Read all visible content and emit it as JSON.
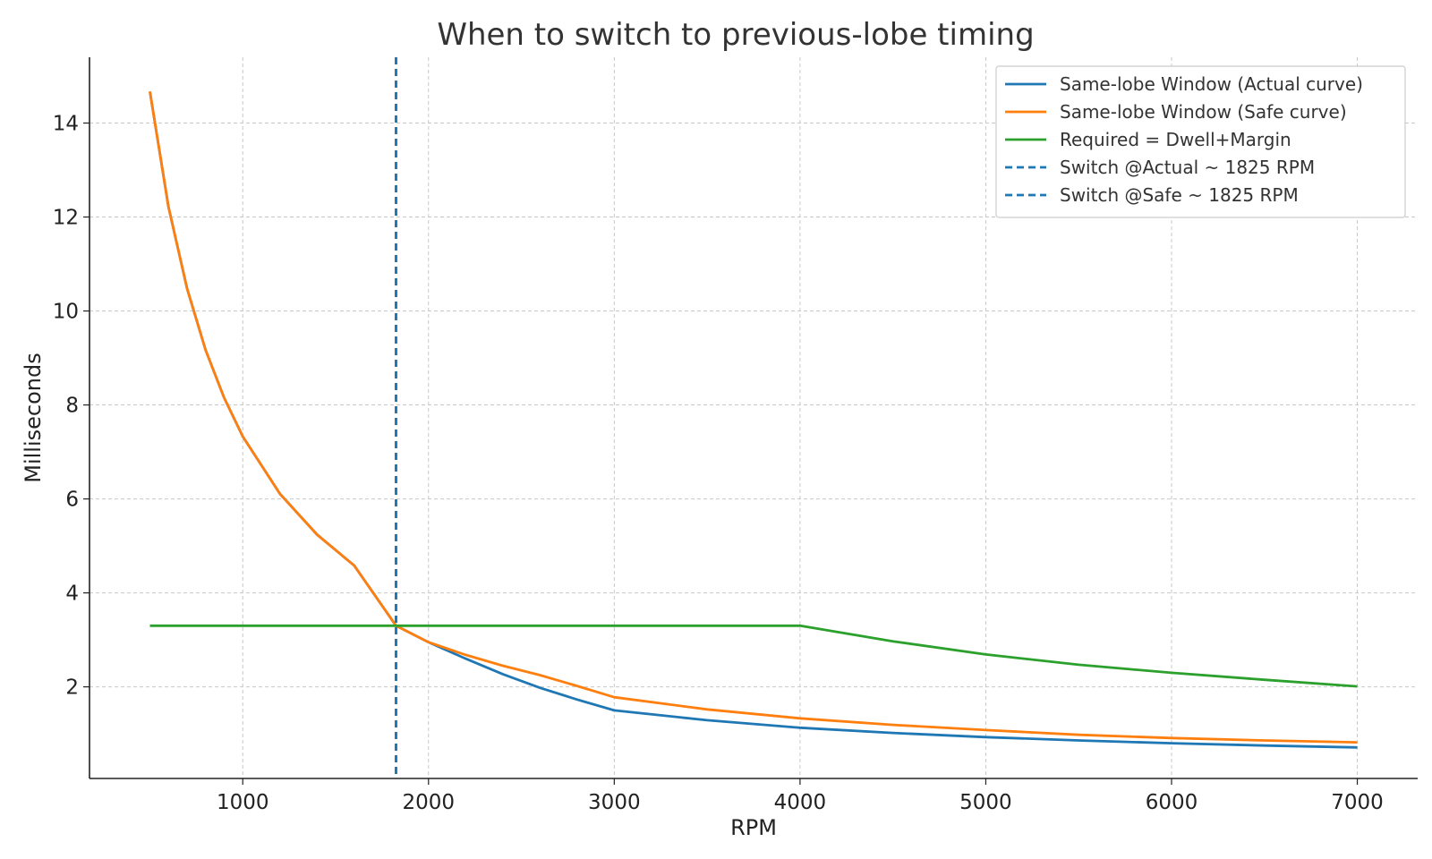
{
  "chart_data": {
    "type": "line",
    "title": "When to switch to previous-lobe timing",
    "xlabel": "RPM",
    "ylabel": "Milliseconds",
    "xlim": [
      175,
      7325
    ],
    "ylim": [
      0.05,
      15.4
    ],
    "xticks": [
      1000,
      2000,
      3000,
      4000,
      5000,
      6000,
      7000
    ],
    "yticks": [
      2,
      4,
      6,
      8,
      10,
      12,
      14
    ],
    "grid": true,
    "legend_position": "top-right",
    "series": [
      {
        "name": "Same-lobe Window (Actual curve)",
        "color": "#1f77b4",
        "dash": "solid",
        "points": [
          [
            500,
            14.67
          ],
          [
            600,
            12.22
          ],
          [
            700,
            10.48
          ],
          [
            800,
            9.17
          ],
          [
            900,
            8.15
          ],
          [
            1000,
            7.33
          ],
          [
            1200,
            6.11
          ],
          [
            1400,
            5.24
          ],
          [
            1600,
            4.58
          ],
          [
            1825,
            3.3
          ],
          [
            2000,
            2.95
          ],
          [
            2200,
            2.6
          ],
          [
            2400,
            2.27
          ],
          [
            2600,
            1.98
          ],
          [
            2800,
            1.73
          ],
          [
            3000,
            1.5
          ],
          [
            3500,
            1.29
          ],
          [
            4000,
            1.13
          ],
          [
            4500,
            1.02
          ],
          [
            5000,
            0.93
          ],
          [
            5500,
            0.86
          ],
          [
            6000,
            0.8
          ],
          [
            6500,
            0.75
          ],
          [
            7000,
            0.71
          ]
        ]
      },
      {
        "name": "Same-lobe Window (Safe curve)",
        "color": "#ff7f0e",
        "dash": "solid",
        "points": [
          [
            500,
            14.67
          ],
          [
            600,
            12.22
          ],
          [
            700,
            10.48
          ],
          [
            800,
            9.17
          ],
          [
            900,
            8.15
          ],
          [
            1000,
            7.33
          ],
          [
            1200,
            6.11
          ],
          [
            1400,
            5.24
          ],
          [
            1600,
            4.58
          ],
          [
            1825,
            3.3
          ],
          [
            2000,
            2.95
          ],
          [
            2200,
            2.68
          ],
          [
            2400,
            2.45
          ],
          [
            2600,
            2.25
          ],
          [
            2800,
            2.02
          ],
          [
            3000,
            1.78
          ],
          [
            3500,
            1.52
          ],
          [
            4000,
            1.33
          ],
          [
            4500,
            1.19
          ],
          [
            5000,
            1.08
          ],
          [
            5500,
            0.98
          ],
          [
            6000,
            0.91
          ],
          [
            6500,
            0.86
          ],
          [
            7000,
            0.82
          ]
        ]
      },
      {
        "name": "Required = Dwell+Margin",
        "color": "#2ca02c",
        "dash": "solid",
        "points": [
          [
            500,
            3.3
          ],
          [
            4000,
            3.3
          ],
          [
            4500,
            2.97
          ],
          [
            5000,
            2.69
          ],
          [
            5500,
            2.47
          ],
          [
            6000,
            2.3
          ],
          [
            6500,
            2.15
          ],
          [
            7000,
            2.01
          ]
        ]
      },
      {
        "name": "Switch @Actual ~ 1825 RPM",
        "color": "#1f77b4",
        "dash": "dashed",
        "vline": 1825
      },
      {
        "name": "Switch @Safe ~ 1825 RPM",
        "color": "#1f77b4",
        "dash": "dashed",
        "vline": 1825
      }
    ]
  }
}
